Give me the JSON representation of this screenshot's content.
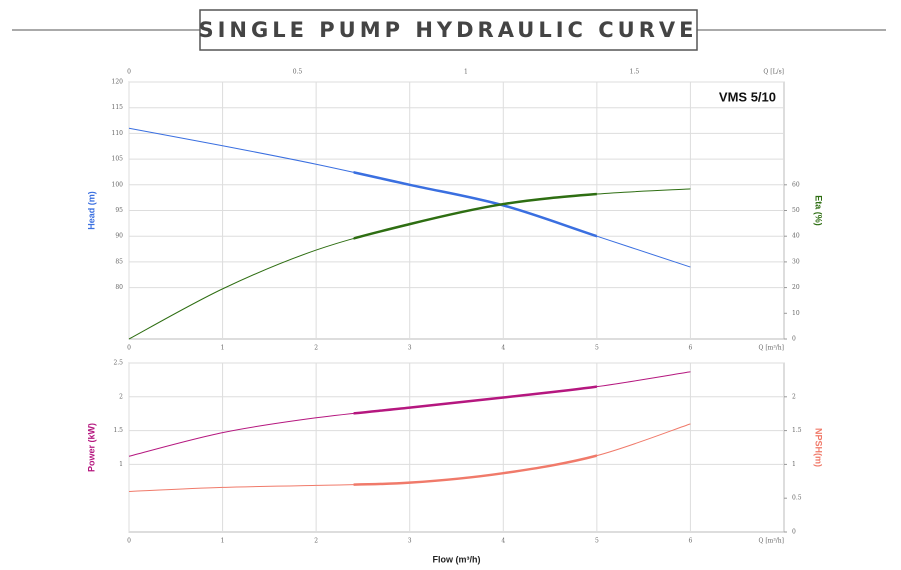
{
  "title": "SINGLE PUMP HYDRAULIC CURVE",
  "chart_data": [
    {
      "type": "line",
      "model_label": "VMS 5/10",
      "x": [
        0,
        1,
        2,
        3,
        4,
        5,
        6
      ],
      "xlim": [
        0,
        7
      ],
      "xticks": [
        0,
        1,
        2,
        3,
        4,
        5,
        6
      ],
      "x_unit": "Q [m³/h]",
      "x2lim": [
        0,
        1.944
      ],
      "x2ticks": [
        0,
        0.5,
        1,
        1.5
      ],
      "x2_unit": "Q [L/s]",
      "ylim": [
        70,
        120
      ],
      "yticks": [
        80,
        85,
        90,
        95,
        100,
        105,
        110,
        115,
        120
      ],
      "ylabel": "Head (m)",
      "ylabel_color": "#3a6fe0",
      "y2lim": [
        0,
        100
      ],
      "y2ticks": [
        0,
        10,
        20,
        30,
        40,
        50,
        60
      ],
      "y2label": "Eta (%)",
      "y2label_color": "#2e6e12",
      "duty_range": [
        2.4,
        5
      ],
      "grid": true,
      "series": [
        {
          "color": "#3a6fe0",
          "values": [
            111,
            107.6,
            104,
            100,
            96,
            90,
            84
          ]
        },
        {
          "color": "#2e6e12",
          "axis": "y2",
          "values": [
            0,
            19.5,
            34.6,
            44.7,
            52.5,
            56.4,
            58.4
          ]
        }
      ]
    },
    {
      "type": "line",
      "x": [
        0,
        1,
        2,
        3,
        4,
        5,
        6
      ],
      "xlim": [
        0,
        7
      ],
      "xticks": [
        0,
        1,
        2,
        3,
        4,
        5,
        6
      ],
      "x_unit": "Q [m³/h]",
      "xlabel": "Flow (m³/h)",
      "ylim": [
        0,
        2.5
      ],
      "yticks": [
        1,
        1.5,
        2,
        2.5
      ],
      "ylabel": "Power (kW)",
      "ylabel_color": "#b5177f",
      "y2lim": [
        0,
        2.5
      ],
      "y2ticks": [
        0,
        0.5,
        1,
        1.5,
        2
      ],
      "y2label": "NPSH(m)",
      "y2label_color": "#f07a6a",
      "duty_range": [
        2.4,
        5
      ],
      "grid": true,
      "series": [
        {
          "color": "#b5177f",
          "values": [
            1.12,
            1.47,
            1.69,
            1.84,
            1.99,
            2.15,
            2.37
          ]
        },
        {
          "color": "#f07a6a",
          "axis": "y2",
          "values": [
            0.6,
            0.66,
            0.69,
            0.73,
            0.87,
            1.13,
            1.6
          ]
        }
      ]
    }
  ]
}
